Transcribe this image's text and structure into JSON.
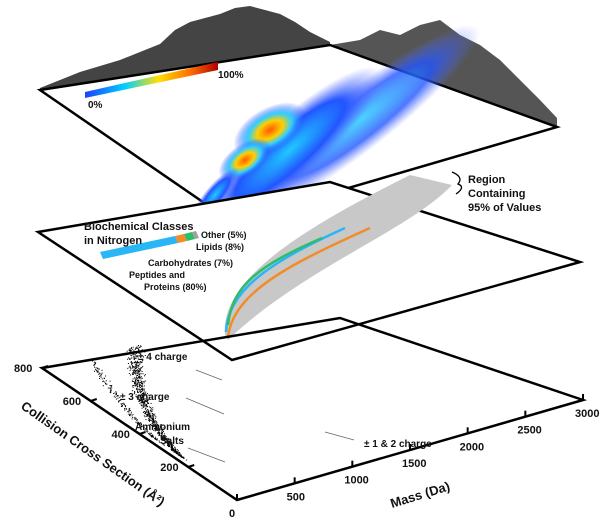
{
  "chart_data": {
    "type": "scatter",
    "title": "",
    "xlabel": "Mass (Da)",
    "ylabel": "Collision Cross Section (Å²)",
    "xlim": [
      0,
      3000
    ],
    "ylim": [
      0,
      800
    ],
    "x_ticks": [
      "0",
      "500",
      "1000",
      "1500",
      "2000",
      "2500",
      "3000"
    ],
    "y_ticks": [
      "200",
      "400",
      "600",
      "800"
    ],
    "annotations": {
      "charge4": "± 4 charge",
      "charge3": "± 3 charge",
      "ammonium": "Ammonium",
      "salts": "Salts",
      "charge12": "± 1 & 2 charge",
      "region1": "Region",
      "region2": "Containing",
      "region3": "95% of Values"
    },
    "colorbar": {
      "min_label": "0%",
      "max_label": "100%"
    },
    "classes": {
      "title1": "Biochemical Classes",
      "title2": "in Nitrogen",
      "items": [
        {
          "label": "Peptides and",
          "label2": "Proteins (80%)",
          "percent": 80,
          "color": "#29b6f6"
        },
        {
          "label": "Carbohydrates (7%)",
          "percent": 7,
          "color": "#f28c28"
        },
        {
          "label": "Lipids (8%)",
          "percent": 8,
          "color": "#2ebd6b"
        },
        {
          "label": "Other (5%)",
          "percent": 5,
          "color": "#a0a0a0"
        }
      ]
    }
  }
}
